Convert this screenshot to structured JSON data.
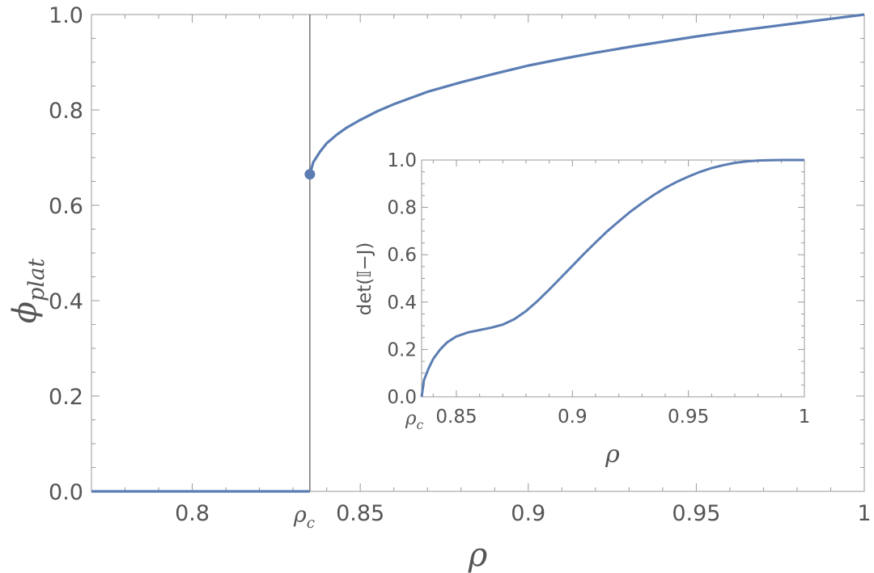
{
  "chart_data": [
    {
      "type": "line",
      "xlabel": "ρ",
      "ylabel_main": "ϕ",
      "ylabel_sub": "plat",
      "xlim": [
        0.77,
        1.0
      ],
      "ylim": [
        0.0,
        1.0
      ],
      "rho_c": 0.835,
      "rho_c_label_main": "ρ",
      "rho_c_label_sub": "c",
      "x_ticks": [
        {
          "value": 0.8,
          "label": "0.8"
        },
        {
          "value": 0.85,
          "label": "0.85"
        },
        {
          "value": 0.9,
          "label": "0.9"
        },
        {
          "value": 0.95,
          "label": "0.95"
        },
        {
          "value": 1.0,
          "label": "1"
        }
      ],
      "y_ticks": [
        {
          "value": 0.0,
          "label": "0.0"
        },
        {
          "value": 0.2,
          "label": "0.2"
        },
        {
          "value": 0.4,
          "label": "0.4"
        },
        {
          "value": 0.6,
          "label": "0.6"
        },
        {
          "value": 0.8,
          "label": "0.8"
        },
        {
          "value": 1.0,
          "label": "1.0"
        }
      ],
      "series": [
        {
          "color": "#5b7db3",
          "segments": [
            {
              "x": [
                0.77,
                0.835
              ],
              "y": [
                0.0,
                0.0
              ]
            },
            {
              "x": [
                0.835,
                0.836,
                0.838,
                0.84,
                0.843,
                0.846,
                0.85,
                0.855,
                0.86,
                0.865,
                0.87,
                0.88,
                0.89,
                0.9,
                0.91,
                0.92,
                0.93,
                0.94,
                0.95,
                0.96,
                0.97,
                0.98,
                0.99,
                1.0
              ],
              "y": [
                0.665,
                0.69,
                0.712,
                0.73,
                0.748,
                0.763,
                0.779,
                0.797,
                0.812,
                0.825,
                0.838,
                0.858,
                0.876,
                0.893,
                0.907,
                0.92,
                0.932,
                0.943,
                0.954,
                0.964,
                0.973,
                0.982,
                0.991,
                1.0
              ]
            }
          ],
          "marker_point": {
            "x": 0.835,
            "y": 0.665
          }
        }
      ]
    },
    {
      "type": "line",
      "inset": true,
      "xlabel": "ρ",
      "ylabel": "det(𝕀−J)",
      "xlim": [
        0.835,
        1.0
      ],
      "ylim": [
        0.0,
        1.0
      ],
      "rho_c_label_main": "ρ",
      "rho_c_label_sub": "c",
      "x_ticks": [
        {
          "value": 0.85,
          "label": "0.85"
        },
        {
          "value": 0.9,
          "label": "0.9"
        },
        {
          "value": 0.95,
          "label": "0.95"
        },
        {
          "value": 1.0,
          "label": "1"
        }
      ],
      "y_ticks": [
        {
          "value": 0.0,
          "label": "0.0"
        },
        {
          "value": 0.2,
          "label": "0.2"
        },
        {
          "value": 0.4,
          "label": "0.4"
        },
        {
          "value": 0.6,
          "label": "0.6"
        },
        {
          "value": 0.8,
          "label": "0.8"
        },
        {
          "value": 1.0,
          "label": "1.0"
        }
      ],
      "series": [
        {
          "color": "#5b7db3",
          "x": [
            0.835,
            0.836,
            0.838,
            0.84,
            0.843,
            0.846,
            0.85,
            0.855,
            0.86,
            0.865,
            0.87,
            0.875,
            0.88,
            0.885,
            0.89,
            0.895,
            0.9,
            0.905,
            0.91,
            0.915,
            0.92,
            0.925,
            0.93,
            0.935,
            0.94,
            0.945,
            0.95,
            0.955,
            0.96,
            0.965,
            0.97,
            0.975,
            0.98,
            0.985,
            0.99,
            0.995,
            1.0
          ],
          "y": [
            0.0,
            0.07,
            0.12,
            0.16,
            0.2,
            0.23,
            0.255,
            0.272,
            0.282,
            0.292,
            0.305,
            0.328,
            0.362,
            0.405,
            0.453,
            0.503,
            0.553,
            0.604,
            0.652,
            0.699,
            0.741,
            0.782,
            0.818,
            0.852,
            0.882,
            0.908,
            0.93,
            0.95,
            0.966,
            0.978,
            0.988,
            0.994,
            0.998,
            0.999,
            1.0,
            1.0,
            1.0
          ]
        }
      ]
    }
  ]
}
